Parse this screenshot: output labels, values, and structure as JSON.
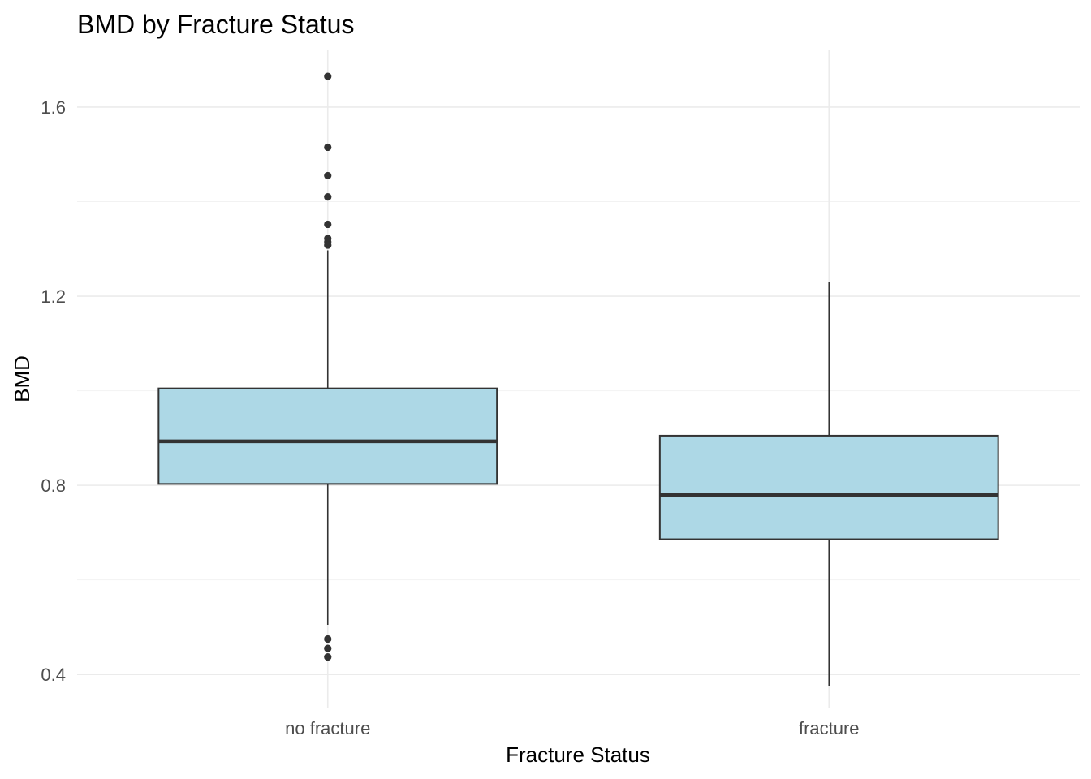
{
  "chart_data": {
    "type": "box",
    "title": "BMD by Fracture Status",
    "xlabel": "Fracture Status",
    "ylabel": "BMD",
    "categories": [
      "no fracture",
      "fracture"
    ],
    "y_ticks": [
      "0.4",
      "0.8",
      "1.2",
      "1.6"
    ],
    "ylim": [
      0.33,
      1.72
    ],
    "grid": true,
    "box_fill": "#add8e6",
    "line_color": "#333333",
    "boxes": [
      {
        "category": "no fracture",
        "whisker_low": 0.505,
        "q1": 0.803,
        "median": 0.893,
        "q3": 1.005,
        "whisker_high": 1.297,
        "outliers": [
          1.665,
          1.515,
          1.455,
          1.41,
          1.352,
          1.322,
          1.315,
          1.308,
          0.475,
          0.455,
          0.437
        ]
      },
      {
        "category": "fracture",
        "whisker_low": 0.375,
        "q1": 0.686,
        "median": 0.78,
        "q3": 0.905,
        "whisker_high": 1.23,
        "outliers": []
      }
    ]
  }
}
